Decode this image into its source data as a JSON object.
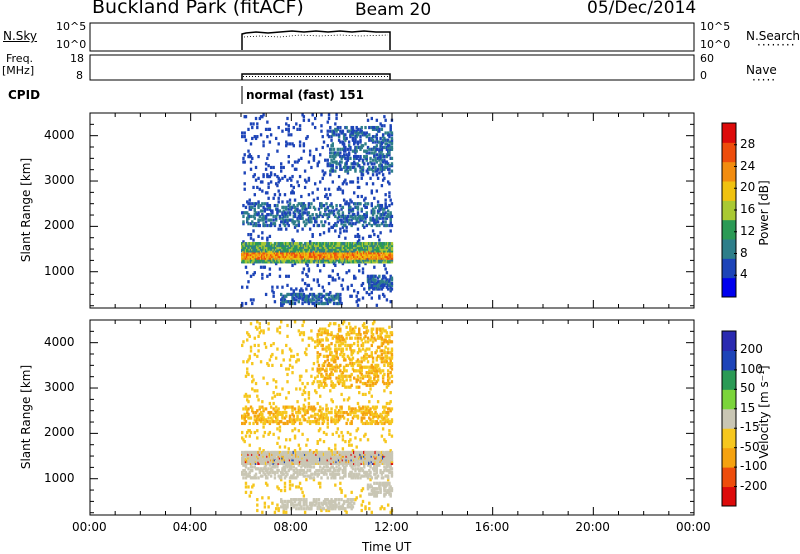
{
  "header": {
    "site": "Buckland Park (fitACF)",
    "beam": "Beam 20",
    "date": "05/Dec/2014"
  },
  "left_labels": {
    "nsky": "N.Sky",
    "freq_line1": "Freq.",
    "freq_line2": "[MHz]",
    "cpid": "CPID"
  },
  "right_labels": {
    "nsearch": "N.Search",
    "nave": "Nave"
  },
  "nsky_ticks": [
    "10^5",
    "10^0"
  ],
  "nsearch_ticks": [
    "10^5",
    "10^0"
  ],
  "freq_ticks": [
    "18",
    "8"
  ],
  "nave_ticks": [
    "60",
    "0"
  ],
  "cpid_text": "normal (fast) 151",
  "colors": {
    "power_scale": [
      "#0000ee",
      "#1d44b8",
      "#2e7e8a",
      "#2b9a55",
      "#a9c933",
      "#f0c20f",
      "#f28c0f",
      "#ee4d0c",
      "#dd0b0b"
    ],
    "velocity_scale": [
      "#dd0b0b",
      "#ee4d0c",
      "#f5a20f",
      "#f6c71e",
      "#c9c6b4",
      "#7bd43a",
      "#2b9a55",
      "#1d44b8",
      "#2a2ab0"
    ]
  },
  "chart_data": [
    {
      "type": "heatmap",
      "panel": "power",
      "xlabel": "",
      "ylabel": "Slant Range [km]",
      "y_ticks": [
        "1000",
        "2000",
        "3000",
        "4000"
      ],
      "ylim": [
        200,
        4500
      ],
      "xlim": [
        "00:00",
        "00:00"
      ],
      "scale_label": "Power [dB]",
      "scale_ticks": [
        "4",
        "8",
        "12",
        "16",
        "20",
        "24",
        "28"
      ],
      "data_time_range": [
        "06:00",
        "12:00"
      ],
      "features": [
        {
          "range_km": [
            1200,
            1650
          ],
          "time": [
            "06:00",
            "12:00"
          ],
          "power_db": [
            8,
            24
          ]
        },
        {
          "range_km": [
            2000,
            3800
          ],
          "time": [
            "06:00",
            "12:00"
          ],
          "power_db": [
            4,
            12
          ]
        },
        {
          "range_km": [
            250,
            500
          ],
          "time": [
            "07:30",
            "10:00"
          ],
          "power_db": [
            4,
            12
          ]
        }
      ]
    },
    {
      "type": "heatmap",
      "panel": "velocity",
      "xlabel": "Time UT",
      "x_ticks": [
        "00:00",
        "04:00",
        "08:00",
        "12:00",
        "16:00",
        "20:00",
        "00:00"
      ],
      "ylabel": "Slant Range [km]",
      "y_ticks": [
        "1000",
        "2000",
        "3000",
        "4000"
      ],
      "ylim": [
        200,
        4500
      ],
      "scale_label": "Velocity [m s⁻¹]",
      "scale_ticks": [
        "-200",
        "-100",
        "-50",
        "-15",
        "15",
        "50",
        "100",
        "200"
      ],
      "data_time_range": [
        "06:00",
        "12:00"
      ],
      "features": [
        {
          "range_km": [
            1300,
            1600
          ],
          "time": [
            "06:00",
            "12:00"
          ],
          "velocity_mps": [
            -15,
            15
          ]
        },
        {
          "range_km": [
            2200,
            3800
          ],
          "time": [
            "06:00",
            "12:00"
          ],
          "velocity_mps": [
            -50,
            -15
          ]
        }
      ]
    }
  ]
}
